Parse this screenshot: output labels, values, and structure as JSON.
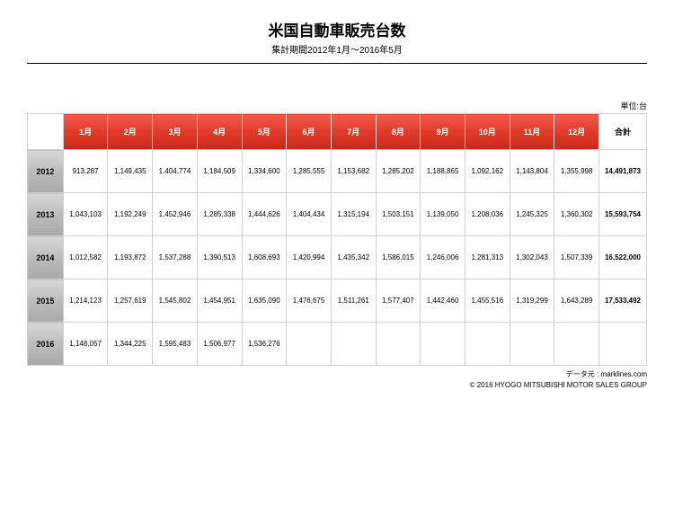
{
  "title": "米国自動車販売台数",
  "subtitle": "集計期間2012年1月〜2016年5月",
  "unit_label": "単位:台",
  "months": [
    "1月",
    "2月",
    "3月",
    "4月",
    "5月",
    "6月",
    "7月",
    "8月",
    "9月",
    "10月",
    "11月",
    "12月"
  ],
  "total_label": "合計",
  "rows": [
    {
      "year": "2012",
      "values": [
        "913,287",
        "1,149,435",
        "1,404,774",
        "1,184,509",
        "1,334,600",
        "1,285,555",
        "1,153,682",
        "1,285,202",
        "1,188,865",
        "1,092,162",
        "1,143,804",
        "1,355,998"
      ],
      "total": "14,491,873"
    },
    {
      "year": "2013",
      "values": [
        "1,043,103",
        "1,192,249",
        "1,452,946",
        "1,285,338",
        "1,444,626",
        "1,404,434",
        "1,315,194",
        "1,503,151",
        "1,139,050",
        "1,208,036",
        "1,245,325",
        "1,360,302"
      ],
      "total": "15,593,754"
    },
    {
      "year": "2014",
      "values": [
        "1,012,582",
        "1,193,872",
        "1,537,288",
        "1,390,513",
        "1,608,693",
        "1,420,994",
        "1,435,342",
        "1,586,015",
        "1,246,006",
        "1,281,313",
        "1,302,043",
        "1,507,339"
      ],
      "total": "16,522,000"
    },
    {
      "year": "2015",
      "values": [
        "1,214,123",
        "1,257,619",
        "1,545,802",
        "1,454,951",
        "1,635,090",
        "1,476,675",
        "1,511,261",
        "1,577,407",
        "1,442,460",
        "1,455,516",
        "1,319,299",
        "1,643,289"
      ],
      "total": "17,533,492"
    },
    {
      "year": "2016",
      "values": [
        "1,148,057",
        "1,344,225",
        "1,595,483",
        "1,506,977",
        "1,536,276",
        "",
        "",
        "",
        "",
        "",
        "",
        ""
      ],
      "total": ""
    }
  ],
  "footer_source": "データ元 : marklines.com",
  "footer_copyright": "© 2016 HYOGO MITSUBISHI MOTOR SALES GROUP",
  "colors": {
    "header_red_top": "#f35a4a",
    "header_red_bottom": "#c82818",
    "year_gray_top": "#d8d8d8",
    "year_gray_bottom": "#a8a8a8",
    "border": "#d0d0d0",
    "background": "#ffffff",
    "text": "#000000"
  }
}
